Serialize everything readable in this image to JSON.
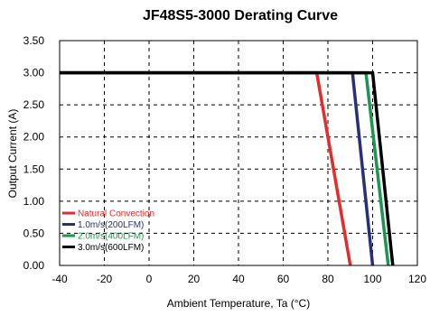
{
  "chart_data": {
    "type": "line",
    "title": "JF48S5-3000 Derating Curve",
    "xlabel": "Ambient Temperature, Ta (°C)",
    "ylabel": "Output Current (A)",
    "xlim": [
      -40,
      120
    ],
    "ylim": [
      0,
      3.5
    ],
    "x_ticks": [
      "-40",
      "-20",
      "0",
      "20",
      "40",
      "60",
      "80",
      "100",
      "120"
    ],
    "y_ticks": [
      "0.00",
      "0.50",
      "1.00",
      "1.50",
      "2.00",
      "2.50",
      "3.00",
      "3.50"
    ],
    "x_tick_values": [
      -40,
      -20,
      0,
      20,
      40,
      60,
      80,
      100,
      120
    ],
    "y_tick_values": [
      0,
      0.5,
      1,
      1.5,
      2,
      2.5,
      3,
      3.5
    ],
    "grid": true,
    "legend_position": "bottom-left",
    "series": [
      {
        "name": "Natural Convection",
        "color": "#e52b2b",
        "x": [
          -40,
          75,
          90
        ],
        "y": [
          3.0,
          3.0,
          0.0
        ]
      },
      {
        "name": "1.0m/s(200LFM)",
        "color": "#2b2f7a",
        "x": [
          -40,
          91,
          100
        ],
        "y": [
          3.0,
          3.0,
          0.0
        ]
      },
      {
        "name": "2.0m/s(400LFM)",
        "color": "#1a9650",
        "x": [
          -40,
          97,
          107
        ],
        "y": [
          3.0,
          3.0,
          0.0
        ]
      },
      {
        "name": "3.0m/s(600LFM)",
        "color": "#000000",
        "x": [
          -40,
          100,
          109
        ],
        "y": [
          3.0,
          3.0,
          0.0
        ]
      }
    ]
  }
}
